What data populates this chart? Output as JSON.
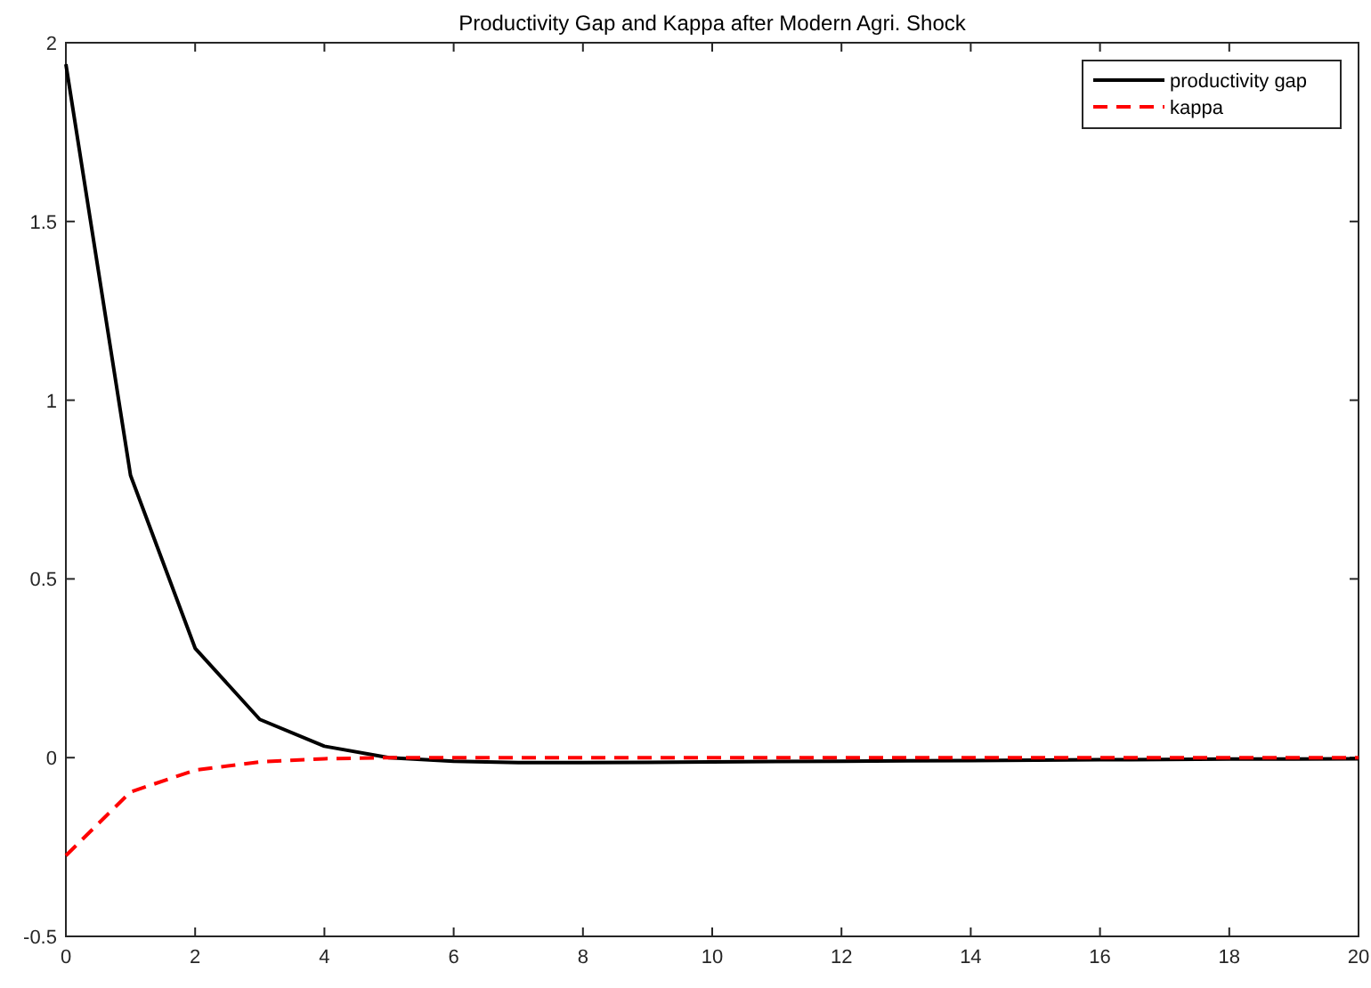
{
  "chart_data": {
    "type": "line",
    "title": "Productivity Gap and Kappa after Modern Agri. Shock",
    "x": [
      0,
      1,
      2,
      3,
      4,
      5,
      6,
      7,
      8,
      9,
      10,
      11,
      12,
      13,
      14,
      15,
      16,
      17,
      18,
      19,
      20
    ],
    "series": [
      {
        "name": "productivity gap",
        "color": "#000000",
        "line_style": "solid",
        "values": [
          1.94,
          0.79,
          0.306,
          0.107,
          0.032,
          0.0,
          -0.01,
          -0.014,
          -0.014,
          -0.013,
          -0.012,
          -0.011,
          -0.01,
          -0.009,
          -0.008,
          -0.007,
          -0.006,
          -0.005,
          -0.004,
          -0.004,
          -0.003
        ]
      },
      {
        "name": "kappa",
        "color": "#ff0000",
        "line_style": "dashed",
        "values": [
          -0.274,
          -0.096,
          -0.035,
          -0.012,
          -0.003,
          0,
          0,
          0,
          0,
          0,
          0,
          0,
          0,
          0,
          0,
          0,
          0,
          0,
          0,
          0,
          0
        ]
      }
    ],
    "xlim": [
      0,
      20
    ],
    "xticks": [
      0,
      2,
      4,
      6,
      8,
      10,
      12,
      14,
      16,
      18,
      20
    ],
    "ylim": [
      -0.5,
      2
    ],
    "yticks": [
      -0.5,
      0,
      0.5,
      1,
      1.5,
      2
    ],
    "grid": false,
    "legend": "top right",
    "marker": "none"
  }
}
